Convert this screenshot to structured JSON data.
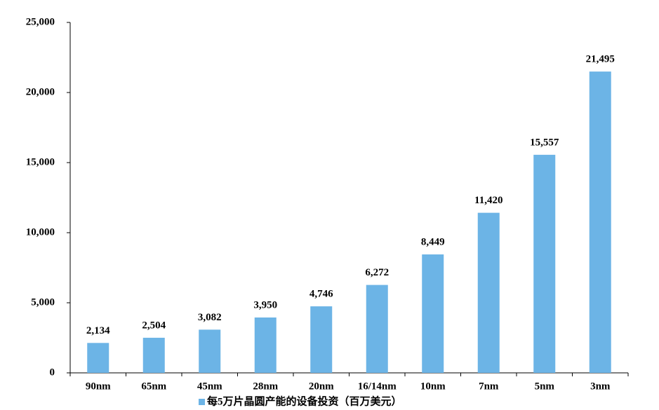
{
  "chart_data": {
    "type": "bar",
    "categories": [
      "90nm",
      "65nm",
      "45nm",
      "28nm",
      "20nm",
      "16/14nm",
      "10nm",
      "7nm",
      "5nm",
      "3nm"
    ],
    "series": [
      {
        "name": "每5万片晶圆产能的设备投资（百万美元）",
        "color": "#6cb4e6",
        "values": [
          2134,
          2504,
          3082,
          3950,
          4746,
          6272,
          8449,
          11420,
          15557,
          21495
        ],
        "value_labels": [
          "2,134",
          "2,504",
          "3,082",
          "3,950",
          "4,746",
          "6,272",
          "8,449",
          "11,420",
          "15,557",
          "21,495"
        ]
      }
    ],
    "ylim": [
      0,
      25000
    ],
    "yticks": [
      0,
      {
        "value": 5000,
        "label": "5,000"
      },
      {
        "value": 10000,
        "label": "10,000"
      },
      {
        "value": 15000,
        "label": "15,000"
      },
      {
        "value": 20000,
        "label": "20,000"
      },
      {
        "value": 25000,
        "label": "25,000"
      }
    ],
    "legend": "bottom"
  }
}
